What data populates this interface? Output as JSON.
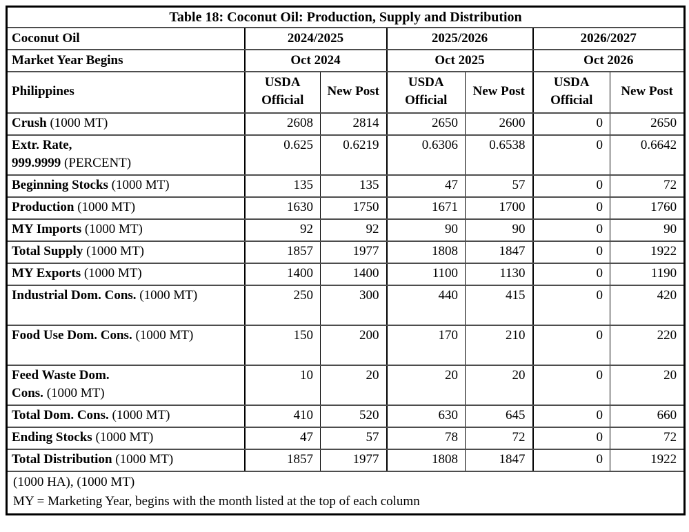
{
  "title": "Table 18: Coconut Oil: Production, Supply and Distribution",
  "commodity_label": "Coconut Oil",
  "market_years": [
    "2024/2025",
    "2025/2026",
    "2026/2027"
  ],
  "market_year_begins_label": "Market Year Begins",
  "market_year_begins": [
    "Oct 2024",
    "Oct 2025",
    "Oct 2026"
  ],
  "country_label": "Philippines",
  "column_headers": [
    "USDA Official",
    "New Post",
    "USDA Official",
    "New Post",
    "USDA Official",
    "New Post"
  ],
  "rows": [
    {
      "label": [
        {
          "text": "Crush",
          "bold": true
        },
        {
          "text": " (1000 MT)",
          "bold": false
        }
      ],
      "values": [
        "2608",
        "2814",
        "2650",
        "2600",
        "0",
        "2650"
      ],
      "tall": false
    },
    {
      "label": [
        {
          "text": "Extr. Rate,",
          "bold": true
        },
        {
          "break": true
        },
        {
          "text": "999.9999",
          "bold": true
        },
        {
          "text": " (PERCENT)",
          "bold": false
        }
      ],
      "values": [
        "0.625",
        "0.6219",
        "0.6306",
        "0.6538",
        "0",
        "0.6642"
      ],
      "tall": true
    },
    {
      "label": [
        {
          "text": "Beginning Stocks",
          "bold": true
        },
        {
          "text": " (1000 MT)",
          "bold": false
        }
      ],
      "values": [
        "135",
        "135",
        "47",
        "57",
        "0",
        "72"
      ],
      "tall": false
    },
    {
      "label": [
        {
          "text": "Production",
          "bold": true
        },
        {
          "text": " (1000 MT)",
          "bold": false
        }
      ],
      "values": [
        "1630",
        "1750",
        "1671",
        "1700",
        "0",
        "1760"
      ],
      "tall": false
    },
    {
      "label": [
        {
          "text": "MY Imports",
          "bold": true
        },
        {
          "text": " (1000 MT)",
          "bold": false
        }
      ],
      "values": [
        "92",
        "92",
        "90",
        "90",
        "0",
        "90"
      ],
      "tall": false
    },
    {
      "label": [
        {
          "text": "Total Supply",
          "bold": true
        },
        {
          "text": " (1000 MT)",
          "bold": false
        }
      ],
      "values": [
        "1857",
        "1977",
        "1808",
        "1847",
        "0",
        "1922"
      ],
      "tall": false
    },
    {
      "label": [
        {
          "text": "MY Exports",
          "bold": true
        },
        {
          "text": " (1000 MT)",
          "bold": false
        }
      ],
      "values": [
        "1400",
        "1400",
        "1100",
        "1130",
        "0",
        "1190"
      ],
      "tall": false
    },
    {
      "label": [
        {
          "text": "Industrial Dom. Cons.",
          "bold": true
        },
        {
          "text": " (1000 MT)",
          "bold": false
        }
      ],
      "values": [
        "250",
        "300",
        "440",
        "415",
        "0",
        "420"
      ],
      "tall": true
    },
    {
      "label": [
        {
          "text": "Food Use Dom. Cons.",
          "bold": true
        },
        {
          "text": " (1000 MT)",
          "bold": false
        }
      ],
      "values": [
        "150",
        "200",
        "170",
        "210",
        "0",
        "220"
      ],
      "tall": true
    },
    {
      "label": [
        {
          "text": "Feed Waste Dom.",
          "bold": true
        },
        {
          "break": true
        },
        {
          "text": "Cons.",
          "bold": true
        },
        {
          "text": " (1000 MT)",
          "bold": false
        }
      ],
      "values": [
        "10",
        "20",
        "20",
        "20",
        "0",
        "20"
      ],
      "tall": true
    },
    {
      "label": [
        {
          "text": "Total Dom. Cons.",
          "bold": true
        },
        {
          "text": " (1000 MT)",
          "bold": false
        }
      ],
      "values": [
        "410",
        "520",
        "630",
        "645",
        "0",
        "660"
      ],
      "tall": false
    },
    {
      "label": [
        {
          "text": "Ending Stocks",
          "bold": true
        },
        {
          "text": " (1000 MT)",
          "bold": false
        }
      ],
      "values": [
        "47",
        "57",
        "78",
        "72",
        "0",
        "72"
      ],
      "tall": false
    },
    {
      "label": [
        {
          "text": "Total Distribution",
          "bold": true
        },
        {
          "text": " (1000 MT)",
          "bold": false
        }
      ],
      "values": [
        "1857",
        "1977",
        "1808",
        "1847",
        "0",
        "1922"
      ],
      "tall": false
    }
  ],
  "footer_lines": [
    "(1000 HA), (1000 MT)",
    "MY = Marketing Year, begins with the month listed at the top of each column"
  ],
  "colors": {
    "text": "#000000",
    "background": "#ffffff",
    "border_outer": "#000000",
    "border_row": "#4d4d4d",
    "border_column": "#000000"
  }
}
